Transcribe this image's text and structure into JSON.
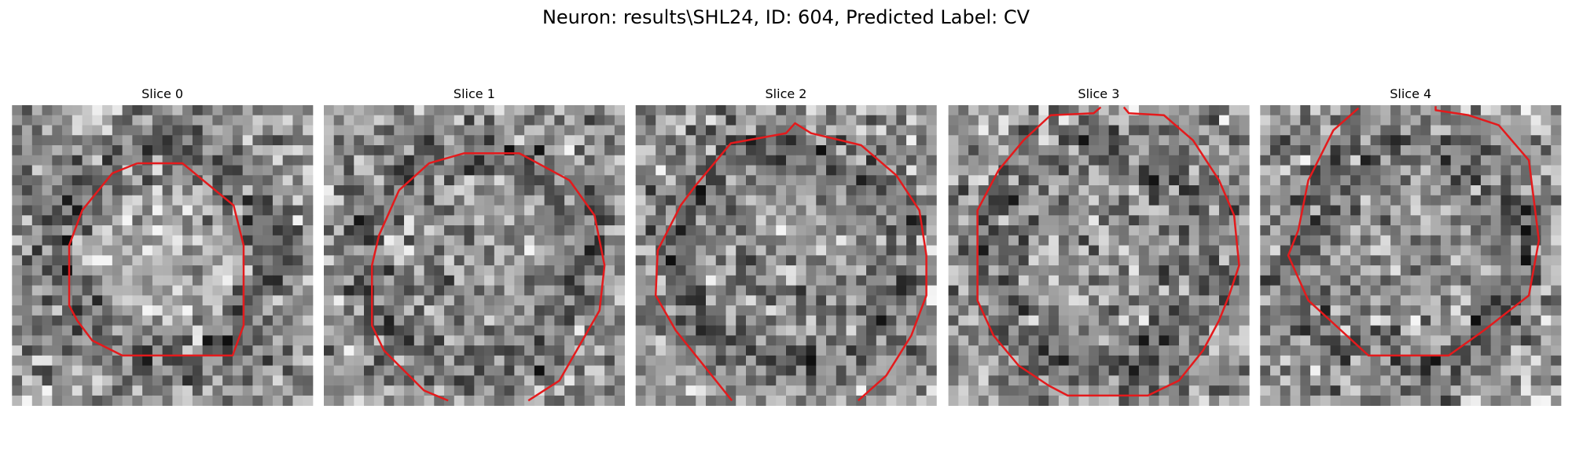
{
  "title": "Neuron: results\\SHL24, ID: 604, Predicted Label: CV",
  "panels": [
    {
      "title": "Slice 0"
    },
    {
      "title": "Slice 1"
    },
    {
      "title": "Slice 2"
    },
    {
      "title": "Slice 3"
    },
    {
      "title": "Slice 4"
    }
  ]
}
